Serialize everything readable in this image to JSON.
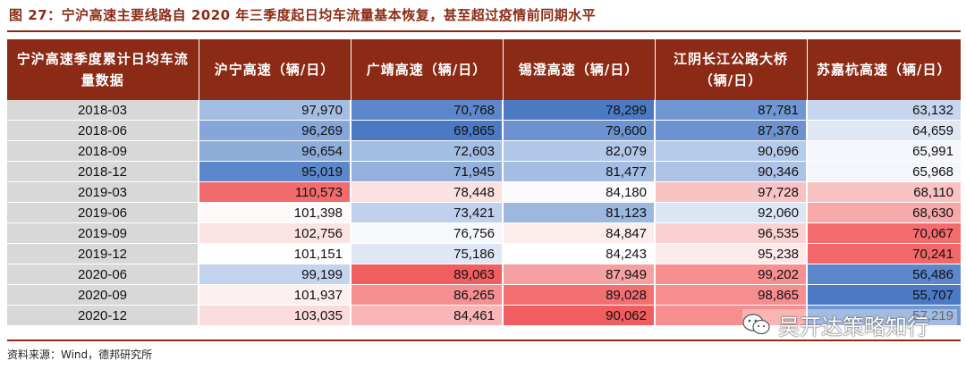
{
  "title": "图 27：宁沪高速主要线路自 2020 年三季度起日均车流量基本恢复，甚至超过疫情前同期水平",
  "source": "资料来源：Wind，德邦研究所",
  "watermark": "吴开达策略知行",
  "table": {
    "headers": [
      "宁沪高速季度累计日均车流量数据",
      "沪宁高速（辆/日）",
      "广靖高速（辆/日）",
      "锡澄高速（辆/日）",
      "江阴长江公路大桥（辆/日）",
      "苏嘉杭高速（辆/日）"
    ],
    "rows": [
      {
        "date": "2018-03",
        "values": [
          "97,970",
          "70,768",
          "78,299",
          "87,781",
          "63,132"
        ],
        "colors": [
          "#a4bde3",
          "#5c87cb",
          "#4b79c4",
          "#7097d2",
          "#c7d6ef"
        ]
      },
      {
        "date": "2018-06",
        "values": [
          "96,269",
          "69,865",
          "79,600",
          "87,376",
          "64,659"
        ],
        "colors": [
          "#86a5d9",
          "#4b79c4",
          "#6c93d0",
          "#6c93d0",
          "#dfe7f5"
        ]
      },
      {
        "date": "2018-09",
        "values": [
          "96,654",
          "72,603",
          "82,079",
          "90,696",
          "65,991"
        ],
        "colors": [
          "#8fadd9",
          "#a4bde3",
          "#b3c7e8",
          "#b6cae9",
          "#f4f6fc"
        ]
      },
      {
        "date": "2018-12",
        "values": [
          "95,019",
          "71,945",
          "81,477",
          "90,346",
          "65,968"
        ],
        "colors": [
          "#5c87cb",
          "#94b1dd",
          "#a4bde3",
          "#adc3e6",
          "#f4f6fc"
        ]
      },
      {
        "date": "2019-03",
        "values": [
          "110,573",
          "78,448",
          "84,180",
          "97,728",
          "68,110"
        ],
        "colors": [
          "#f26b6d",
          "#fbe1e2",
          "#fbfbfe",
          "#f9c2c3",
          "#f9c2c3"
        ]
      },
      {
        "date": "2019-06",
        "values": [
          "101,398",
          "73,421",
          "81,123",
          "92,060",
          "68,630"
        ],
        "colors": [
          "#fef8f8",
          "#bfd0ec",
          "#9cb7e0",
          "#dce5f4",
          "#f7a9aa"
        ]
      },
      {
        "date": "2019-09",
        "values": [
          "102,756",
          "76,756",
          "84,847",
          "96,535",
          "70,067"
        ],
        "colors": [
          "#fbe3e4",
          "#f6f8fc",
          "#fcecec",
          "#fad1d2",
          "#f36d6f"
        ]
      },
      {
        "date": "2019-12",
        "values": [
          "101,151",
          "75,186",
          "84,243",
          "95,238",
          "70,241"
        ],
        "colors": [
          "#ffffff",
          "#dfe7f5",
          "#ffffff",
          "#fdeaea",
          "#f26769"
        ]
      },
      {
        "date": "2020-06",
        "values": [
          "99,199",
          "89,063",
          "87,949",
          "99,202",
          "56,486"
        ],
        "colors": [
          "#c5d4ee",
          "#f15e60",
          "#f6a0a1",
          "#f78f91",
          "#5c87cb"
        ]
      },
      {
        "date": "2020-09",
        "values": [
          "101,937",
          "86,265",
          "89,028",
          "98,865",
          "55,707"
        ],
        "colors": [
          "#fdf0f0",
          "#f58f91",
          "#f36f71",
          "#f68d8f",
          "#4b79c4"
        ]
      },
      {
        "date": "2020-12",
        "values": [
          "103,035",
          "84,461",
          "90,062",
          "",
          "57,219"
        ],
        "colors": [
          "#fbdcdd",
          "#f9b6b7",
          "#f15e60",
          "#f68d8f",
          "#7097d2"
        ]
      }
    ]
  }
}
